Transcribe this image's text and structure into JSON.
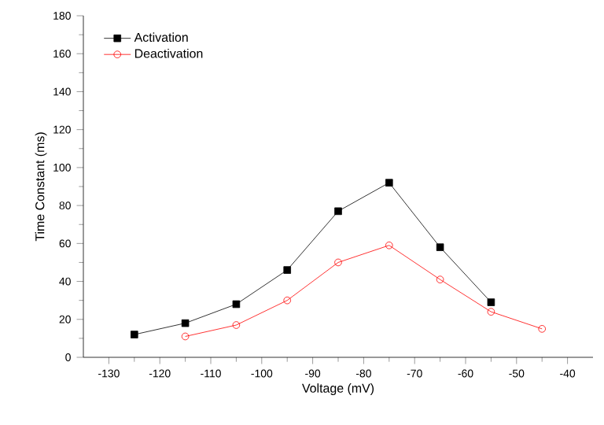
{
  "chart_data": {
    "type": "line",
    "xlabel": "Voltage (mV)",
    "ylabel": "Time Constant (ms)",
    "xlim": [
      -135,
      -35
    ],
    "xticks": [
      -130,
      -120,
      -110,
      -100,
      -90,
      -80,
      -70,
      -60,
      -50,
      -40
    ],
    "ylim": [
      0,
      180
    ],
    "yticks": [
      0,
      20,
      40,
      60,
      80,
      100,
      120,
      140,
      160,
      180
    ],
    "legend": "top left",
    "grid": false,
    "series": [
      {
        "name": "Activation",
        "color": "#000000",
        "marker": "square",
        "x": [
          -125,
          -115,
          -105,
          -95,
          -85,
          -75,
          -65,
          -55
        ],
        "values": [
          12,
          18,
          28,
          46,
          77,
          92,
          58,
          29
        ]
      },
      {
        "name": "Deactivation",
        "color": "#ff0000",
        "marker": "circle",
        "x": [
          -115,
          -105,
          -95,
          -85,
          -75,
          -65,
          -55,
          -45
        ],
        "values": [
          11,
          17,
          30,
          50,
          59,
          41,
          24,
          15
        ]
      }
    ]
  }
}
